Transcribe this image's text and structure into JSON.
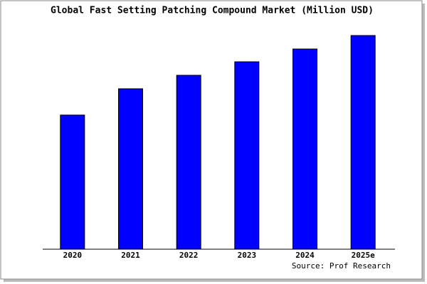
{
  "chart_data": {
    "type": "bar",
    "title": "Global Fast Setting Patching Compound Market (Million USD)",
    "categories": [
      "2020",
      "2021",
      "2022",
      "2023",
      "2024",
      "2025e"
    ],
    "values": [
      189,
      226,
      245,
      264,
      282,
      301
    ],
    "color": "#0000ff",
    "ylim": [
      0,
      306
    ],
    "source": "Source: Prof Research"
  }
}
